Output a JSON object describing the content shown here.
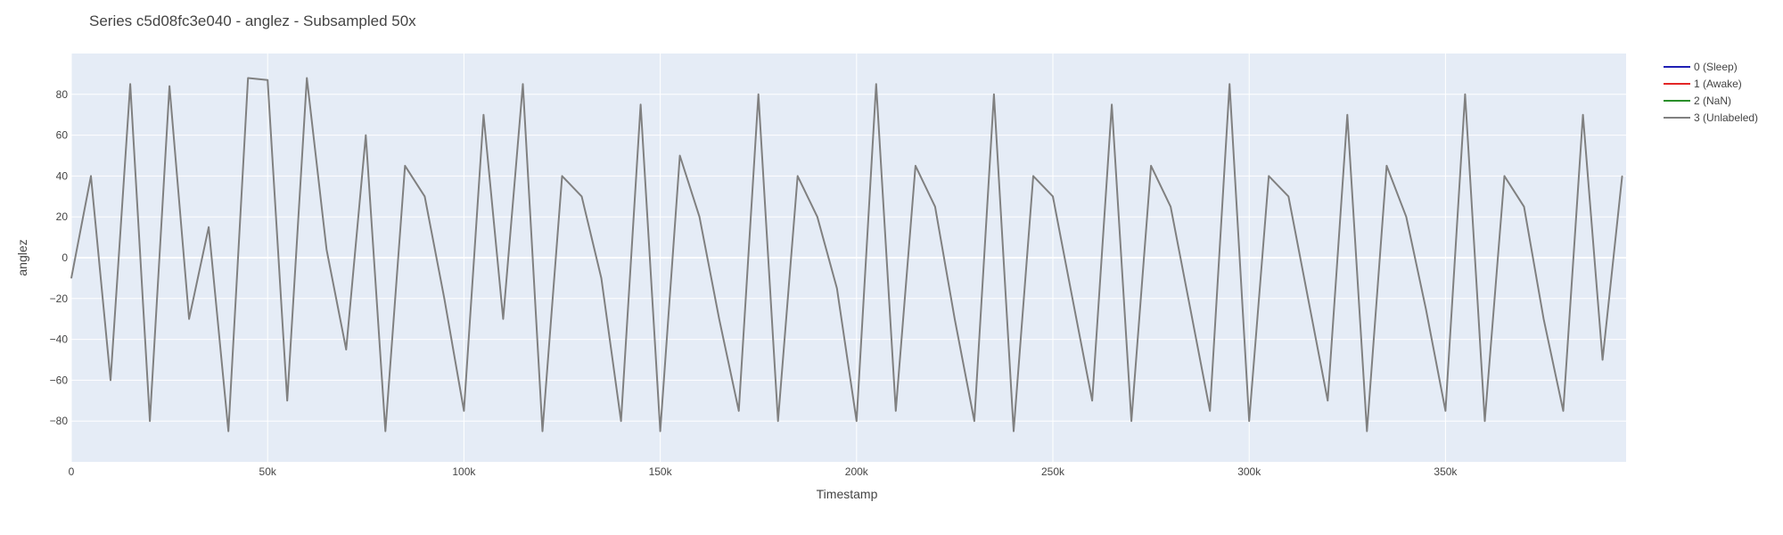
{
  "chart_data": {
    "type": "line",
    "title": "Series c5d08fc3e040 - anglez - Subsampled 50x",
    "xlabel": "Timestamp",
    "ylabel": "anglez",
    "xlim": [
      0,
      396000
    ],
    "ylim": [
      -100,
      100
    ],
    "x_tick_values": [
      0,
      50000,
      100000,
      150000,
      200000,
      250000,
      300000,
      350000
    ],
    "x_tick_labels": [
      "0",
      "50k",
      "100k",
      "150k",
      "200k",
      "250k",
      "300k",
      "350k"
    ],
    "y_tick_values": [
      80,
      60,
      40,
      20,
      0,
      -20,
      -40,
      -60,
      -80
    ],
    "y_tick_labels": [
      "80",
      "60",
      "40",
      "20",
      "0",
      "−20",
      "−40",
      "−60",
      "−80"
    ],
    "grid": true,
    "legend_position": "top-right",
    "legend": [
      {
        "name": "0 (Sleep)",
        "color": "#1f1fb4"
      },
      {
        "name": "1 (Awake)",
        "color": "#e32626"
      },
      {
        "name": "2 (NaN)",
        "color": "#2a8f2a"
      },
      {
        "name": "3 (Unlabeled)",
        "color": "#808080"
      }
    ],
    "series": [
      {
        "label_index": 3,
        "color": "#808080",
        "x": [
          0,
          5000,
          10000,
          15000,
          20000,
          25000,
          30000,
          35000,
          40000,
          45000,
          50000,
          55000,
          60000,
          65000,
          70000,
          75000,
          80000,
          85000,
          90000,
          95000,
          100000,
          105000,
          110000,
          115000,
          120000,
          125000,
          130000,
          135000,
          140000,
          145000,
          150000,
          155000,
          160000,
          165000,
          170000,
          175000,
          180000,
          185000,
          190000,
          195000,
          200000,
          205000,
          210000,
          215000,
          220000,
          225000,
          230000,
          235000,
          240000,
          245000,
          250000,
          255000,
          260000,
          265000,
          270000,
          275000,
          280000,
          285000,
          290000,
          295000,
          300000,
          305000,
          310000,
          315000,
          320000,
          325000,
          330000,
          335000,
          340000,
          345000,
          350000,
          355000,
          360000,
          365000,
          370000,
          375000,
          380000,
          385000,
          390000,
          395000
        ],
        "y": [
          -10,
          40,
          -60,
          85,
          -80,
          84,
          -30,
          15,
          -85,
          88,
          87,
          -70,
          88,
          4,
          -45,
          60,
          -85,
          45,
          30,
          -20,
          -75,
          70,
          -30,
          85,
          -85,
          40,
          30,
          -10,
          -80,
          75,
          -85,
          50,
          20,
          -30,
          -75,
          80,
          -80,
          40,
          20,
          -15,
          -80,
          85,
          -75,
          45,
          25,
          -30,
          -80,
          80,
          -85,
          40,
          30,
          -20,
          -70,
          75,
          -80,
          45,
          25,
          -25,
          -75,
          85,
          -80,
          40,
          30,
          -20,
          -70,
          70,
          -85,
          45,
          20,
          -25,
          -75,
          80,
          -80,
          40,
          25,
          -30,
          -75,
          70,
          -50,
          40
        ],
        "pattern": "dense oscillation between about -88 and 88 throughout; flat plateaus near 87 around x≈40000 and x≈50000–55000, flat segment near 4 around x≈56000–59000"
      }
    ]
  }
}
